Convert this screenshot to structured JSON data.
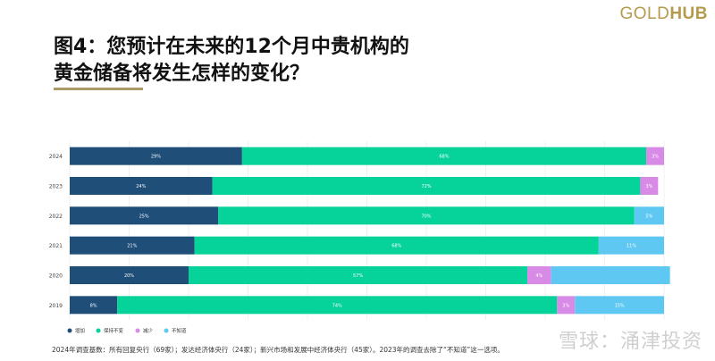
{
  "brand": {
    "gold": "GOLD",
    "hub": "HUB",
    "color": "#b69a4c"
  },
  "title": {
    "line1": "图4：您预计在未来的12个月中贵机构的",
    "line2": "黄金储备将发生怎样的变化？"
  },
  "footnote": "2024年调查基数：所有回复央行（69家）；发达经济体央行（24家）；新兴市场和发展中经济体央行（45家）。2023年的调查去除了“不知道”这一选项。",
  "watermark": "雪球：涌津投资",
  "chart_data": {
    "type": "bar",
    "orientation": "horizontal",
    "stacked": true,
    "categories": [
      "2024",
      "2023",
      "2022",
      "2021",
      "2020",
      "2019"
    ],
    "series": [
      {
        "name": "增加",
        "color": "#1f4e79",
        "values": [
          29,
          24,
          25,
          21,
          20,
          8
        ],
        "labels": [
          "29%",
          "24%",
          "25%",
          "21%",
          "20%",
          "8%"
        ]
      },
      {
        "name": "保持不变",
        "color": "#06d39a",
        "values": [
          68,
          72,
          70,
          68,
          57,
          74
        ],
        "labels": [
          "68%",
          "72%",
          "70%",
          "68%",
          "57%",
          "74%"
        ]
      },
      {
        "name": "减少",
        "color": "#d88be6",
        "values": [
          3,
          3,
          0,
          0,
          4,
          3
        ],
        "labels": [
          "3%",
          "3%",
          "",
          "",
          "4%",
          "3%"
        ]
      },
      {
        "name": "不知道",
        "color": "#5ec8f2",
        "values": [
          0,
          0,
          5,
          11,
          20,
          15
        ],
        "labels": [
          "",
          "",
          "5%",
          "11%",
          "",
          "15%"
        ]
      }
    ],
    "xlim": [
      0,
      100
    ],
    "grid": true,
    "legend_position": "bottom-left"
  }
}
